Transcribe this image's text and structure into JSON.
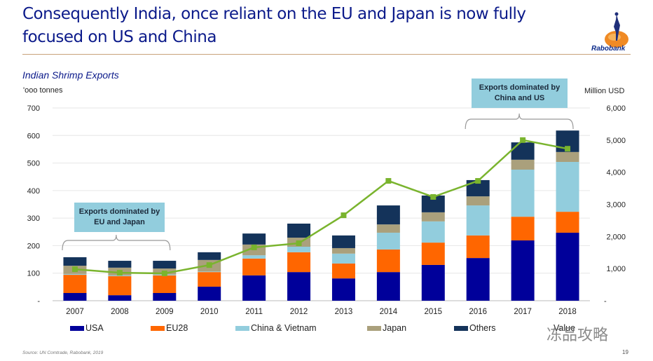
{
  "header": {
    "title": "Consequently India, once reliant on the EU and Japan is now fully focused on US and China",
    "logo_text": "Rabobank"
  },
  "footer": {
    "source": "Source: UN Comtrade, Rabobank,  2019",
    "page_number": "19",
    "watermark": "冻品攻略"
  },
  "annotations": [
    {
      "text_line1": "Exports dominated by",
      "text_line2": "EU and Japan",
      "span": [
        "2007",
        "2009"
      ]
    },
    {
      "text_line1": "Exports dominated by",
      "text_line2": "China and US",
      "span": [
        "2016",
        "2018"
      ]
    }
  ],
  "chart_data": {
    "type": "bar",
    "stacked": true,
    "title": "Indian Shrimp Exports",
    "ylabel": "'ooo tonnes",
    "y2label": "Million USD",
    "ylim": [
      0,
      700
    ],
    "y2lim": [
      0,
      6000
    ],
    "yticks": [
      "-",
      "100",
      "200",
      "300",
      "400",
      "500",
      "600",
      "700"
    ],
    "y2ticks": [
      "-",
      "1,000",
      "2,000",
      "3,000",
      "4,000",
      "5,000",
      "6,000"
    ],
    "grid": true,
    "legend_position": "bottom",
    "categories": [
      "2007",
      "2008",
      "2009",
      "2010",
      "2011",
      "2012",
      "2013",
      "2014",
      "2015",
      "2016",
      "2017",
      "2018"
    ],
    "series": [
      {
        "name": "USA",
        "color": "#00009a",
        "values": [
          28,
          20,
          28,
          51,
          92,
          104,
          81,
          104,
          130,
          155,
          219,
          247
        ]
      },
      {
        "name": "EU28",
        "color": "#ff6600",
        "values": [
          66,
          69,
          64,
          53,
          61,
          72,
          54,
          82,
          81,
          82,
          86,
          76
        ]
      },
      {
        "name": "China & Vietnam",
        "color": "#92cddd",
        "values": [
          3,
          3,
          3,
          2,
          12,
          20,
          36,
          61,
          77,
          109,
          171,
          181
        ]
      },
      {
        "name": "Japan",
        "color": "#aaa07c",
        "values": [
          30,
          28,
          22,
          42,
          39,
          33,
          20,
          30,
          33,
          33,
          36,
          36
        ]
      },
      {
        "name": "Others",
        "color": "#14335a",
        "values": [
          31,
          25,
          28,
          28,
          40,
          51,
          46,
          69,
          61,
          59,
          63,
          78
        ]
      }
    ],
    "line_series": {
      "name": "Value",
      "color": "#7ab42e",
      "axis": "right",
      "values": [
        980,
        870,
        850,
        1110,
        1660,
        1790,
        2660,
        3730,
        3230,
        3730,
        5000,
        4730
      ]
    }
  }
}
